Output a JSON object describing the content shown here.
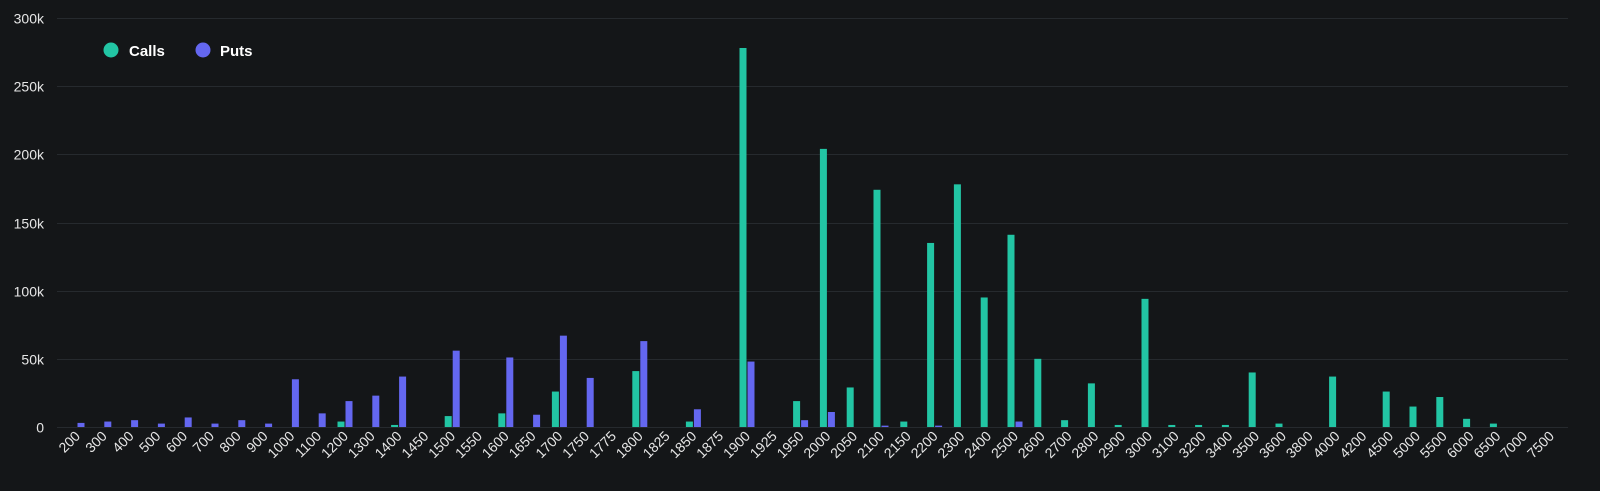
{
  "chart_data": {
    "type": "bar",
    "title": "",
    "xlabel": "",
    "ylabel": "",
    "ylim": [
      0,
      300000
    ],
    "yticks": [
      0,
      50000,
      100000,
      150000,
      200000,
      250000,
      300000
    ],
    "ytick_labels": [
      "0",
      "50k",
      "100k",
      "150k",
      "200k",
      "250k",
      "300k"
    ],
    "grid": true,
    "legend_position": "top-left",
    "categories": [
      "200",
      "300",
      "400",
      "500",
      "600",
      "700",
      "800",
      "900",
      "1000",
      "1100",
      "1200",
      "1300",
      "1400",
      "1450",
      "1500",
      "1550",
      "1600",
      "1650",
      "1700",
      "1750",
      "1775",
      "1800",
      "1825",
      "1850",
      "1875",
      "1900",
      "1925",
      "1950",
      "2000",
      "2050",
      "2100",
      "2150",
      "2200",
      "2300",
      "2400",
      "2500",
      "2600",
      "2700",
      "2800",
      "2900",
      "3000",
      "3100",
      "3200",
      "3400",
      "3500",
      "3600",
      "3800",
      "4000",
      "4200",
      "4500",
      "5000",
      "5500",
      "6000",
      "6500",
      "7000",
      "7500"
    ],
    "series": [
      {
        "name": "Calls",
        "color": "#22c5a4",
        "values": [
          0,
          0,
          0,
          0,
          0,
          0,
          0,
          0,
          0,
          0,
          4000,
          0,
          1500,
          0,
          8000,
          0,
          10000,
          0,
          26000,
          0,
          0,
          41000,
          0,
          4000,
          0,
          278000,
          0,
          19000,
          204000,
          29000,
          174000,
          4000,
          135000,
          178000,
          95000,
          141000,
          50000,
          5000,
          32000,
          1500,
          94000,
          1500,
          1500,
          1500,
          40000,
          2500,
          0,
          37000,
          0,
          26000,
          15000,
          22000,
          6000,
          2500,
          0,
          0
        ]
      },
      {
        "name": "Puts",
        "color": "#6467f0",
        "values": [
          3000,
          4000,
          5000,
          2500,
          7000,
          2500,
          5000,
          2500,
          35000,
          10000,
          19000,
          23000,
          37000,
          0,
          56000,
          0,
          51000,
          9000,
          67000,
          36000,
          0,
          63000,
          0,
          13000,
          0,
          48000,
          0,
          5000,
          11000,
          0,
          1000,
          0,
          1000,
          0,
          0,
          4000,
          0,
          0,
          0,
          0,
          0,
          0,
          0,
          0,
          0,
          0,
          0,
          0,
          0,
          0,
          0,
          0,
          0,
          0,
          0,
          0
        ]
      }
    ]
  },
  "legend": [
    {
      "label": "Calls",
      "color": "#22c5a4"
    },
    {
      "label": "Puts",
      "color": "#6467f0"
    }
  ],
  "colors": {
    "background": "#141618",
    "grid": "#262a2e",
    "axis_text": "#e6e6e6",
    "legend_text": "#ffffff"
  }
}
